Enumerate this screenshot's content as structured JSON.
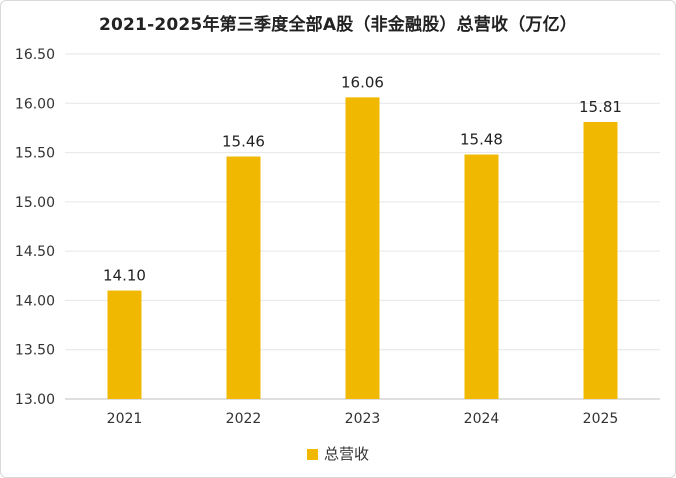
{
  "chart_data": {
    "type": "bar",
    "title": "2021-2025年第三季度全部A股（非金融股）总营收（万亿）",
    "categories": [
      "2021",
      "2022",
      "2023",
      "2024",
      "2025"
    ],
    "series": [
      {
        "name": "总营收",
        "values": [
          14.1,
          15.46,
          16.06,
          15.48,
          15.81
        ],
        "color": "#F0B800"
      }
    ],
    "data_labels": [
      "14.10",
      "15.46",
      "16.06",
      "15.48",
      "15.81"
    ],
    "ylim": [
      13.0,
      16.5
    ],
    "yticks": [
      "13.00",
      "13.50",
      "14.00",
      "14.50",
      "15.00",
      "15.50",
      "16.00",
      "16.50"
    ],
    "grid": true,
    "legend_position": "bottom",
    "gridline_color": "#e6e6e6",
    "axis_color": "#bfbfbf"
  }
}
